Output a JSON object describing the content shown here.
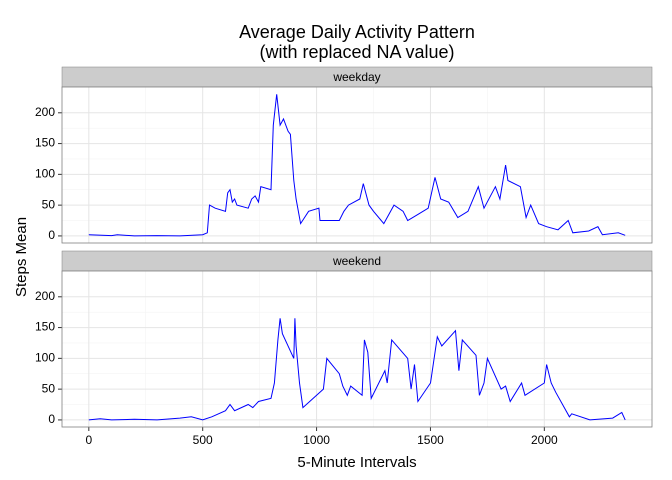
{
  "chart_data": {
    "type": "line",
    "title": "Average Daily Activity Pattern",
    "subtitle": "(with replaced NA value)",
    "x_label": "5-Minute Intervals",
    "y_label": "Steps Mean",
    "color": "#0000ff",
    "grid": true,
    "xlim": [
      -117.75,
      2472.75
    ],
    "xticks": [
      0,
      500,
      1000,
      1500,
      2000
    ],
    "ylim": [
      -11.5,
      241.9
    ],
    "yticks": [
      0,
      50,
      100,
      150,
      200
    ],
    "series": [
      {
        "name": "weekday",
        "x": [
          0,
          100,
          125,
          200,
          300,
          400,
          500,
          520,
          530,
          555,
          600,
          610,
          620,
          630,
          640,
          650,
          700,
          715,
          730,
          745,
          755,
          800,
          810,
          825,
          840,
          855,
          875,
          885,
          900,
          910,
          930,
          965,
          1010,
          1015,
          1100,
          1120,
          1140,
          1190,
          1205,
          1230,
          1250,
          1295,
          1340,
          1380,
          1400,
          1445,
          1490,
          1520,
          1545,
          1580,
          1620,
          1665,
          1710,
          1735,
          1785,
          1805,
          1830,
          1840,
          1895,
          1920,
          1940,
          1975,
          2010,
          2060,
          2105,
          2125,
          2195,
          2235,
          2255,
          2325,
          2355
        ],
        "values": [
          2,
          0.5,
          2,
          0,
          0.5,
          0,
          2,
          5,
          50,
          45,
          40,
          70,
          75,
          55,
          60,
          50,
          45,
          60,
          65,
          55,
          80,
          75,
          180,
          230,
          180,
          190,
          170,
          165,
          90,
          60,
          20,
          40,
          45,
          25,
          25,
          40,
          50,
          60,
          85,
          50,
          40,
          20,
          50,
          40,
          25,
          35,
          45,
          95,
          60,
          55,
          30,
          40,
          80,
          45,
          80,
          60,
          115,
          90,
          80,
          30,
          50,
          20,
          15,
          10,
          25,
          5,
          8,
          15,
          2,
          5,
          1
        ]
      },
      {
        "name": "weekend",
        "x": [
          0,
          50,
          100,
          200,
          300,
          400,
          450,
          500,
          540,
          600,
          620,
          640,
          700,
          720,
          745,
          800,
          815,
          830,
          840,
          850,
          900,
          905,
          910,
          925,
          940,
          1000,
          1030,
          1045,
          1100,
          1115,
          1135,
          1150,
          1200,
          1210,
          1225,
          1240,
          1300,
          1310,
          1330,
          1400,
          1415,
          1430,
          1445,
          1500,
          1530,
          1550,
          1610,
          1625,
          1640,
          1700,
          1715,
          1735,
          1750,
          1810,
          1830,
          1850,
          1900,
          1915,
          2000,
          2010,
          2030,
          2050,
          2110,
          2120,
          2200,
          2300,
          2340,
          2355
        ],
        "values": [
          0,
          2,
          0,
          1,
          0,
          3,
          5,
          0,
          5,
          15,
          25,
          15,
          25,
          20,
          30,
          35,
          60,
          130,
          165,
          140,
          100,
          165,
          120,
          60,
          20,
          40,
          50,
          100,
          75,
          55,
          40,
          55,
          40,
          130,
          110,
          35,
          80,
          60,
          130,
          100,
          50,
          90,
          30,
          60,
          135,
          120,
          145,
          80,
          130,
          105,
          40,
          60,
          100,
          50,
          55,
          30,
          60,
          40,
          60,
          90,
          60,
          45,
          5,
          10,
          0,
          3,
          12,
          0
        ]
      }
    ]
  }
}
